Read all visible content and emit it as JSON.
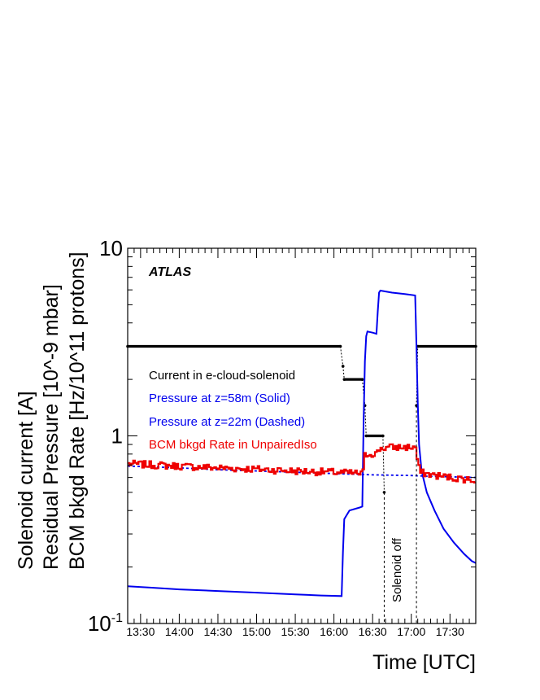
{
  "chart_data": {
    "type": "line",
    "annotation": "ATLAS",
    "xlabel": "Time [UTC]",
    "ylabel_lines": [
      "Solenoid current [A]",
      "Residual Pressure [10^-9 mbar]",
      "BCM bkgd Rate [Hz/10^11 protons]"
    ],
    "yscale": "log",
    "ylim": [
      0.1,
      10
    ],
    "xlim": [
      "13:20",
      "17:50"
    ],
    "x_tick_labels": [
      "13:30",
      "14:00",
      "14:30",
      "15:00",
      "15:30",
      "16:00",
      "16:30",
      "17:00",
      "17:30"
    ],
    "y_tick_labels": [
      {
        "value": 0.1,
        "base": "10",
        "exp": "-1"
      },
      {
        "value": 1,
        "base": "1",
        "exp": ""
      },
      {
        "value": 10,
        "base": "10",
        "exp": ""
      }
    ],
    "vertical_annotation": "Solenoid off",
    "solenoid_off_interval": [
      "16:39",
      "17:04"
    ],
    "legend": [
      {
        "label": "Current in e-cloud-solenoid",
        "color": "#000000"
      },
      {
        "label": "Pressure at z=58m (Solid)",
        "color": "#0000ee"
      },
      {
        "label": "Pressure at z=22m (Dashed)",
        "color": "#0000ee"
      },
      {
        "label": "BCM bkgd Rate in UnpairedIso",
        "color": "#ee0000"
      }
    ],
    "series": [
      {
        "name": "Current in e-cloud-solenoid",
        "color": "#000000",
        "style": "markers",
        "points": [
          [
            "13:20",
            3.0
          ],
          [
            "16:05",
            3.0
          ],
          [
            "16:07",
            2.35
          ],
          [
            "16:08",
            2.0
          ],
          [
            "16:22",
            2.0
          ],
          [
            "16:24",
            1.45
          ],
          [
            "16:25",
            1.0
          ],
          [
            "16:38",
            1.0
          ],
          [
            "16:39",
            0.5
          ],
          [
            "16:40",
            0.0
          ],
          [
            "17:03",
            0.0
          ],
          [
            "17:04",
            1.45
          ],
          [
            "17:05",
            3.0
          ],
          [
            "17:50",
            3.0
          ]
        ]
      },
      {
        "name": "Pressure at z=58m (Solid)",
        "color": "#0000ee",
        "style": "solid",
        "points": [
          [
            "13:20",
            0.158
          ],
          [
            "13:40",
            0.155
          ],
          [
            "14:00",
            0.152
          ],
          [
            "14:30",
            0.149
          ],
          [
            "15:00",
            0.146
          ],
          [
            "15:30",
            0.143
          ],
          [
            "15:50",
            0.141
          ],
          [
            "16:06",
            0.14
          ],
          [
            "16:07",
            0.24
          ],
          [
            "16:08",
            0.36
          ],
          [
            "16:12",
            0.4
          ],
          [
            "16:20",
            0.415
          ],
          [
            "16:22",
            0.42
          ],
          [
            "16:23",
            1.2
          ],
          [
            "16:24",
            2.5
          ],
          [
            "16:25",
            3.4
          ],
          [
            "16:26",
            3.6
          ],
          [
            "16:30",
            3.55
          ],
          [
            "16:33",
            3.5
          ],
          [
            "16:34",
            4.6
          ],
          [
            "16:35",
            5.8
          ],
          [
            "16:36",
            5.95
          ],
          [
            "16:45",
            5.8
          ],
          [
            "16:55",
            5.7
          ],
          [
            "17:03",
            5.6
          ],
          [
            "17:04",
            3.0
          ],
          [
            "17:05",
            1.5
          ],
          [
            "17:06",
            0.9
          ],
          [
            "17:08",
            0.65
          ],
          [
            "17:12",
            0.5
          ],
          [
            "17:18",
            0.4
          ],
          [
            "17:25",
            0.32
          ],
          [
            "17:33",
            0.27
          ],
          [
            "17:41",
            0.235
          ],
          [
            "17:47",
            0.215
          ],
          [
            "17:50",
            0.21
          ]
        ]
      },
      {
        "name": "Pressure at z=22m (Dashed)",
        "color": "#0000ee",
        "style": "dashed",
        "points": [
          [
            "13:20",
            0.69
          ],
          [
            "14:00",
            0.675
          ],
          [
            "14:30",
            0.66
          ],
          [
            "15:00",
            0.65
          ],
          [
            "15:30",
            0.64
          ],
          [
            "16:00",
            0.63
          ],
          [
            "16:30",
            0.62
          ],
          [
            "17:00",
            0.615
          ],
          [
            "17:10",
            0.61
          ],
          [
            "17:30",
            0.605
          ],
          [
            "17:50",
            0.6
          ]
        ]
      },
      {
        "name": "BCM bkgd Rate in UnpairedIso",
        "color": "#ee0000",
        "style": "histogram",
        "points": [
          [
            "13:20",
            0.71
          ],
          [
            "13:40",
            0.7
          ],
          [
            "14:00",
            0.69
          ],
          [
            "14:30",
            0.675
          ],
          [
            "15:00",
            0.665
          ],
          [
            "15:30",
            0.65
          ],
          [
            "16:00",
            0.64
          ],
          [
            "16:20",
            0.63
          ],
          [
            "16:22",
            0.64
          ],
          [
            "16:23",
            0.78
          ],
          [
            "16:25",
            0.8
          ],
          [
            "16:33",
            0.81
          ],
          [
            "16:35",
            0.86
          ],
          [
            "16:45",
            0.87
          ],
          [
            "17:03",
            0.87
          ],
          [
            "17:04",
            0.75
          ],
          [
            "17:06",
            0.64
          ],
          [
            "17:15",
            0.62
          ],
          [
            "17:30",
            0.6
          ],
          [
            "17:50",
            0.58
          ]
        ]
      }
    ]
  }
}
